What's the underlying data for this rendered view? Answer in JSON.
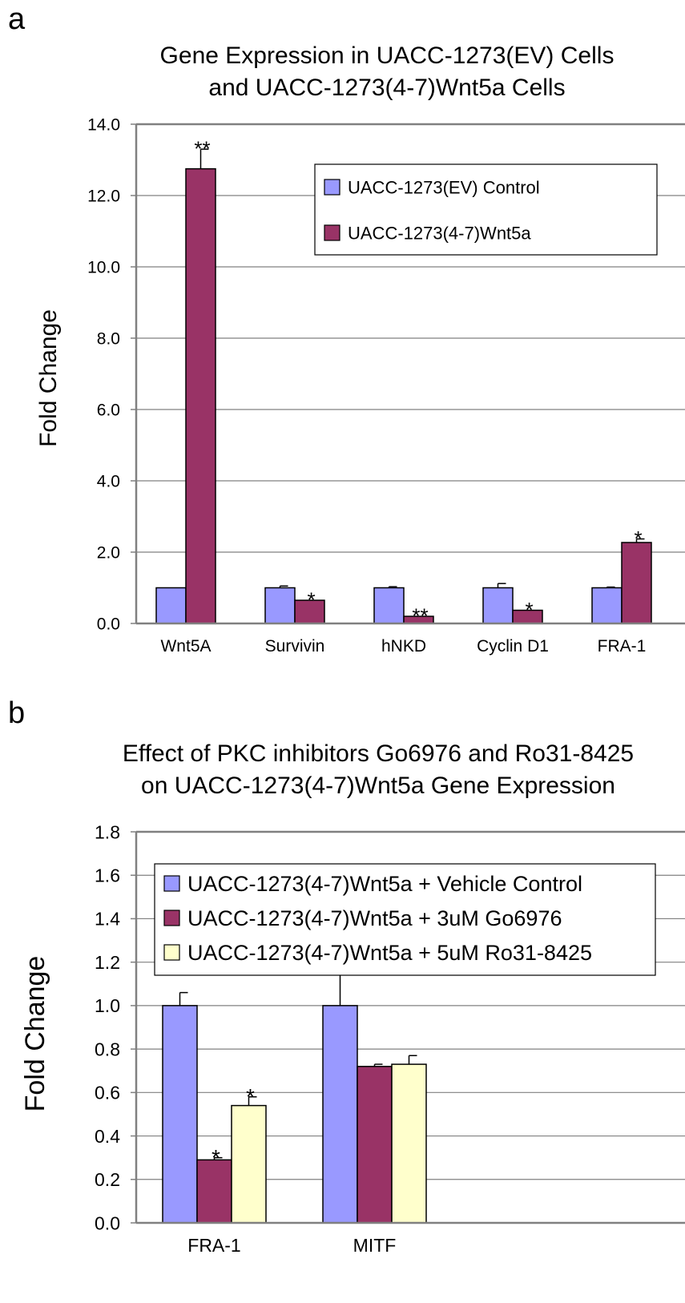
{
  "panels": [
    {
      "letter": "a"
    },
    {
      "letter": "b"
    }
  ],
  "chart_data": [
    {
      "type": "bar",
      "title_lines": [
        "Gene Expression in UACC-1273(EV) Cells",
        "and UACC-1273(4-7)Wnt5a Cells"
      ],
      "ylabel": "Fold Change",
      "xlabel": "",
      "categories": [
        "Wnt5A",
        "Survivin",
        "hNKD",
        "Cyclin D1",
        "FRA-1"
      ],
      "ylim": [
        0,
        14
      ],
      "yticks": [
        "0.0",
        "2.0",
        "4.0",
        "6.0",
        "8.0",
        "10.0",
        "12.0",
        "14.0"
      ],
      "grid": true,
      "legend_position": "top-right",
      "series": [
        {
          "name": "UACC-1273(EV) Control",
          "color": "#9999ff",
          "values": [
            1.0,
            1.0,
            1.0,
            1.0,
            1.0
          ],
          "errors": [
            0.0,
            0.05,
            0.03,
            0.12,
            0.02
          ],
          "annotations": [
            "",
            "",
            "",
            "",
            ""
          ]
        },
        {
          "name": "UACC-1273(4-7)Wnt5a",
          "color": "#993366",
          "values": [
            12.75,
            0.65,
            0.2,
            0.37,
            2.27
          ],
          "errors": [
            0.55,
            0.0,
            0.0,
            0.0,
            0.1
          ],
          "annotations": [
            "**",
            "*",
            "**",
            "*",
            "*"
          ]
        }
      ]
    },
    {
      "type": "bar",
      "title_lines": [
        "Effect of PKC inhibitors Go6976 and Ro31-8425",
        "on UACC-1273(4-7)Wnt5a Gene Expression"
      ],
      "ylabel": "Fold Change",
      "xlabel": "",
      "categories": [
        "FRA-1",
        "MITF"
      ],
      "ylim": [
        0,
        1.8
      ],
      "yticks": [
        "0.0",
        "0.2",
        "0.4",
        "0.6",
        "0.8",
        "1.0",
        "1.2",
        "1.4",
        "1.6",
        "1.8"
      ],
      "grid": true,
      "legend_position": "top",
      "series": [
        {
          "name": "UACC-1273(4-7)Wnt5a + Vehicle Control",
          "color": "#9999ff",
          "values": [
            1.0,
            1.0
          ],
          "errors": [
            0.06,
            0.25
          ],
          "annotations": [
            "",
            ""
          ]
        },
        {
          "name": "UACC-1273(4-7)Wnt5a + 3uM Go6976",
          "color": "#993366",
          "values": [
            0.29,
            0.72
          ],
          "errors": [
            0.01,
            0.01
          ],
          "annotations": [
            "*",
            ""
          ]
        },
        {
          "name": "UACC-1273(4-7)Wnt5a + 5uM Ro31-8425",
          "color": "#ffffcc",
          "values": [
            0.54,
            0.73
          ],
          "errors": [
            0.04,
            0.04
          ],
          "annotations": [
            "*",
            ""
          ]
        }
      ]
    }
  ]
}
